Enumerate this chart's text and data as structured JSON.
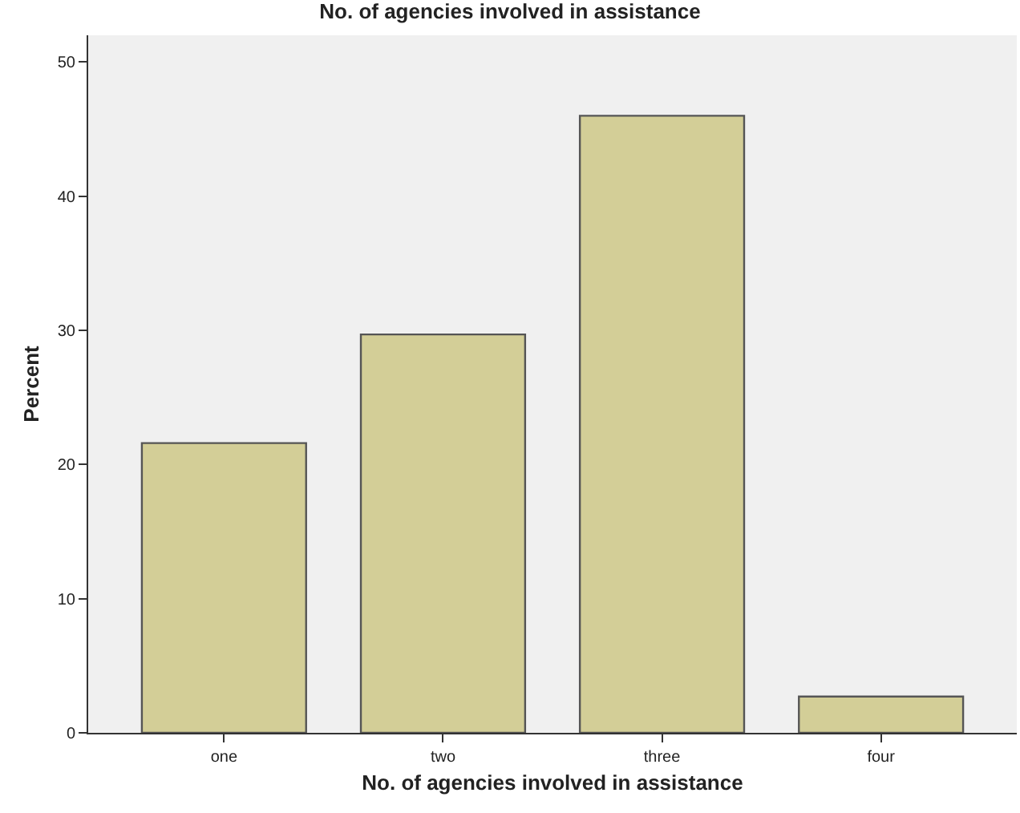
{
  "chart_data": {
    "type": "bar",
    "title": "No. of agencies involved in assistance",
    "xlabel": "No. of agencies involved in assistance",
    "ylabel": "Percent",
    "categories": [
      "one",
      "two",
      "three",
      "four"
    ],
    "values": [
      21.6,
      29.7,
      46.0,
      2.7
    ],
    "color": "#d3ce97",
    "ylim": [
      0,
      52
    ],
    "yticks": [
      0,
      10,
      20,
      30,
      40,
      50
    ],
    "grid": false
  }
}
